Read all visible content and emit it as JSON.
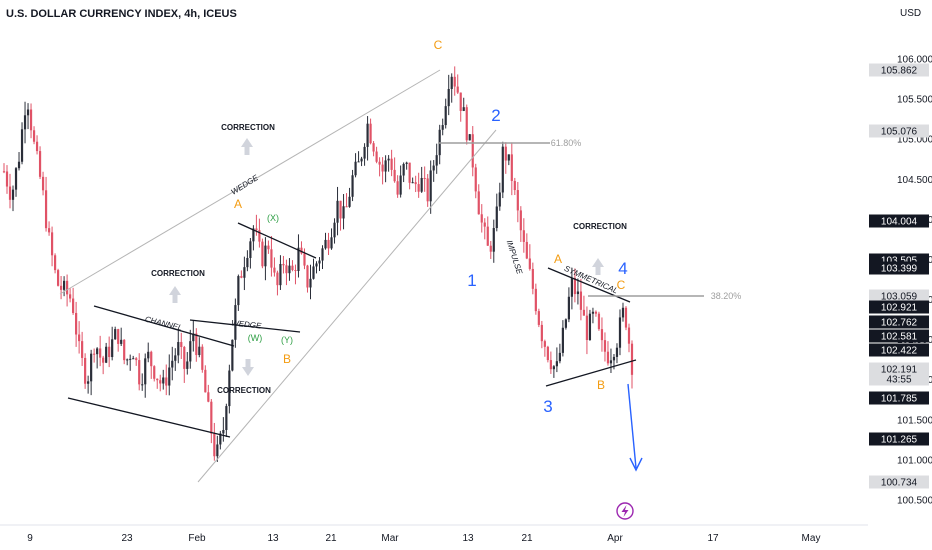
{
  "chart_data": {
    "type": "candlestick",
    "title": "U.S. DOLLAR CURRENCY INDEX, 4h, ICEUS",
    "currency": "USD",
    "y_ticks": [
      "106.000",
      "105.500",
      "105.000",
      "104.500",
      "104.000",
      "103.500",
      "103.000",
      "102.500",
      "102.000",
      "101.500",
      "101.000",
      "100.500"
    ],
    "x_ticks": [
      "9",
      "23",
      "Feb",
      "13",
      "21",
      "Mar",
      "13",
      "21",
      "Apr",
      "17",
      "May"
    ],
    "ylim": [
      100.35,
      106.45
    ],
    "price_tags": [
      {
        "label": "105.862",
        "style": "gray"
      },
      {
        "label": "105.076",
        "style": "gray"
      },
      {
        "label": "104.004",
        "style": "black"
      },
      {
        "label": "103.505",
        "style": "black"
      },
      {
        "label": "103.399",
        "style": "black"
      },
      {
        "label": "103.059",
        "style": "gray"
      },
      {
        "label": "102.921",
        "style": "black"
      },
      {
        "label": "102.762",
        "style": "black"
      },
      {
        "label": "102.581",
        "style": "black"
      },
      {
        "label": "102.422",
        "style": "black"
      },
      {
        "label": "102.191",
        "style": "gray"
      },
      {
        "label": "43:55",
        "style": "gray"
      },
      {
        "label": "101.785",
        "style": "black"
      },
      {
        "label": "101.265",
        "style": "black"
      },
      {
        "label": "100.734",
        "style": "gray"
      }
    ],
    "price_path": [
      [
        0,
        104.6
      ],
      [
        1,
        104.3
      ],
      [
        2,
        104.8
      ],
      [
        3,
        105.6
      ],
      [
        4,
        104.9
      ],
      [
        5,
        104.4
      ],
      [
        6,
        103.7
      ],
      [
        7,
        103.2
      ],
      [
        8,
        103.1
      ],
      [
        9,
        103.0
      ],
      [
        10,
        102.3
      ],
      [
        11,
        102.0
      ],
      [
        12,
        102.5
      ],
      [
        13,
        102.2
      ],
      [
        14,
        102.4
      ],
      [
        15,
        102.6
      ],
      [
        16,
        102.2
      ],
      [
        17,
        102.4
      ],
      [
        18,
        102.0
      ],
      [
        19,
        102.3
      ],
      [
        20,
        102.1
      ],
      [
        21,
        101.9
      ],
      [
        22,
        102.2
      ],
      [
        23,
        102.4
      ],
      [
        24,
        102.1
      ],
      [
        25,
        102.6
      ],
      [
        26,
        102.2
      ],
      [
        27,
        101.6
      ],
      [
        28,
        101.0
      ],
      [
        29,
        101.4
      ],
      [
        30,
        102.4
      ],
      [
        31,
        103.2
      ],
      [
        32,
        103.6
      ],
      [
        33,
        103.9
      ],
      [
        34,
        103.5
      ],
      [
        35,
        103.7
      ],
      [
        36,
        103.1
      ],
      [
        37,
        103.5
      ],
      [
        38,
        103.3
      ],
      [
        39,
        103.6
      ],
      [
        40,
        103.2
      ],
      [
        41,
        103.4
      ],
      [
        42,
        103.6
      ],
      [
        43,
        103.8
      ],
      [
        44,
        104.2
      ],
      [
        45,
        104.0
      ],
      [
        46,
        104.5
      ],
      [
        47,
        104.7
      ],
      [
        48,
        105.2
      ],
      [
        49,
        104.9
      ],
      [
        50,
        104.6
      ],
      [
        51,
        104.8
      ],
      [
        52,
        104.3
      ],
      [
        53,
        104.7
      ],
      [
        54,
        104.4
      ],
      [
        55,
        104.5
      ],
      [
        56,
        104.3
      ],
      [
        57,
        104.8
      ],
      [
        58,
        105.3
      ],
      [
        59,
        105.9
      ],
      [
        60,
        105.6
      ],
      [
        61,
        105.2
      ],
      [
        62,
        104.7
      ],
      [
        63,
        104.0
      ],
      [
        64,
        103.6
      ],
      [
        65,
        103.9
      ],
      [
        66,
        104.9
      ],
      [
        67,
        104.6
      ],
      [
        68,
        104.0
      ],
      [
        69,
        103.5
      ],
      [
        70,
        103.1
      ],
      [
        71,
        102.6
      ],
      [
        72,
        102.3
      ],
      [
        73,
        102.1
      ],
      [
        74,
        102.6
      ],
      [
        75,
        103.2
      ],
      [
        76,
        103.0
      ],
      [
        77,
        102.6
      ],
      [
        78,
        102.8
      ],
      [
        79,
        102.4
      ],
      [
        80,
        102.3
      ],
      [
        81,
        102.5
      ],
      [
        82,
        102.9
      ],
      [
        83,
        102.2
      ]
    ],
    "annotations": {
      "wave_labels": [
        {
          "text": "C",
          "color": "orange"
        },
        {
          "text": "2",
          "color": "blue"
        },
        {
          "text": "1",
          "color": "blue"
        },
        {
          "text": "3",
          "color": "blue"
        },
        {
          "text": "4",
          "color": "blue"
        },
        {
          "text": "A",
          "color": "orange"
        },
        {
          "text": "B",
          "color": "orange"
        },
        {
          "text": "A",
          "color": "orange"
        },
        {
          "text": "B",
          "color": "orange"
        },
        {
          "text": "C",
          "color": "orange"
        },
        {
          "text": "(X)",
          "color": "green"
        },
        {
          "text": "(W)",
          "color": "green"
        },
        {
          "text": "(Y)",
          "color": "green"
        }
      ],
      "pattern_labels": [
        "CHANNEL",
        "WEDGE",
        "WEDGE",
        "IMPULSE",
        "SYMMETRICAL"
      ],
      "correction_labels": [
        "CORRECTION",
        "CORRECTION",
        "CORRECTION",
        "CORRECTION"
      ],
      "fib_levels": [
        {
          "label": "61.80%"
        },
        {
          "label": "38.20%"
        }
      ]
    }
  },
  "ui": {
    "lightning_icon": "lightning-bolt-icon"
  }
}
